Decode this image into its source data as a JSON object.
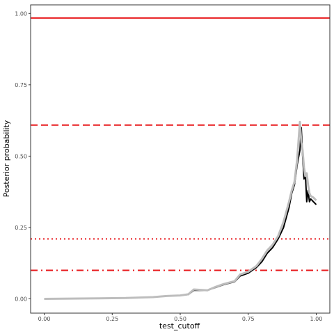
{
  "chart_data": {
    "type": "line",
    "title": "",
    "xlabel": "test_cutoff",
    "ylabel": "Posterior probability",
    "xlim": [
      -0.05,
      1.05
    ],
    "ylim": [
      -0.05,
      1.03
    ],
    "grid": false,
    "legend": "none",
    "x_ticks": [
      {
        "value": 0.0,
        "label": "0.00"
      },
      {
        "value": 0.25,
        "label": "0.25"
      },
      {
        "value": 0.5,
        "label": "0.50"
      },
      {
        "value": 0.75,
        "label": "0.75"
      },
      {
        "value": 1.0,
        "label": "1.00"
      }
    ],
    "y_ticks": [
      {
        "value": 0.0,
        "label": "0.00"
      },
      {
        "value": 0.25,
        "label": "0.25"
      },
      {
        "value": 0.5,
        "label": "0.50"
      },
      {
        "value": 0.75,
        "label": "0.75"
      },
      {
        "value": 1.0,
        "label": "1.00"
      }
    ],
    "reference_lines": [
      {
        "y": 0.984,
        "style": "solid",
        "color": "#e8191c"
      },
      {
        "y": 0.609,
        "style": "dashed",
        "color": "#e8191c"
      },
      {
        "y": 0.21,
        "style": "dotted",
        "color": "#e8191c"
      },
      {
        "y": 0.1,
        "style": "dashdot",
        "color": "#e8191c"
      }
    ],
    "series": [
      {
        "color": "#000000",
        "points": [
          [
            0.0,
            0.0
          ],
          [
            0.1,
            0.001
          ],
          [
            0.2,
            0.002
          ],
          [
            0.3,
            0.003
          ],
          [
            0.4,
            0.006
          ],
          [
            0.45,
            0.01
          ],
          [
            0.5,
            0.012
          ],
          [
            0.53,
            0.015
          ],
          [
            0.55,
            0.03
          ],
          [
            0.6,
            0.03
          ],
          [
            0.63,
            0.04
          ],
          [
            0.66,
            0.05
          ],
          [
            0.7,
            0.06
          ],
          [
            0.72,
            0.08
          ],
          [
            0.75,
            0.09
          ],
          [
            0.78,
            0.11
          ],
          [
            0.8,
            0.13
          ],
          [
            0.82,
            0.16
          ],
          [
            0.84,
            0.18
          ],
          [
            0.86,
            0.21
          ],
          [
            0.88,
            0.25
          ],
          [
            0.9,
            0.32
          ],
          [
            0.91,
            0.37
          ],
          [
            0.92,
            0.4
          ],
          [
            0.93,
            0.47
          ],
          [
            0.94,
            0.52
          ],
          [
            0.945,
            0.6
          ],
          [
            0.95,
            0.5
          ],
          [
            0.955,
            0.42
          ],
          [
            0.96,
            0.44
          ],
          [
            0.965,
            0.34
          ],
          [
            0.97,
            0.38
          ],
          [
            0.975,
            0.34
          ],
          [
            0.98,
            0.35
          ],
          [
            0.99,
            0.34
          ],
          [
            1.0,
            0.33
          ]
        ]
      },
      {
        "color": "#bdbdbd",
        "points": [
          [
            0.0,
            0.0
          ],
          [
            0.1,
            0.001
          ],
          [
            0.2,
            0.002
          ],
          [
            0.3,
            0.003
          ],
          [
            0.4,
            0.006
          ],
          [
            0.45,
            0.01
          ],
          [
            0.5,
            0.012
          ],
          [
            0.53,
            0.016
          ],
          [
            0.55,
            0.033
          ],
          [
            0.6,
            0.03
          ],
          [
            0.63,
            0.042
          ],
          [
            0.66,
            0.052
          ],
          [
            0.7,
            0.062
          ],
          [
            0.72,
            0.085
          ],
          [
            0.75,
            0.095
          ],
          [
            0.78,
            0.115
          ],
          [
            0.8,
            0.14
          ],
          [
            0.82,
            0.17
          ],
          [
            0.84,
            0.19
          ],
          [
            0.86,
            0.22
          ],
          [
            0.88,
            0.27
          ],
          [
            0.9,
            0.34
          ],
          [
            0.91,
            0.38
          ],
          [
            0.92,
            0.41
          ],
          [
            0.93,
            0.49
          ],
          [
            0.94,
            0.62
          ],
          [
            0.945,
            0.55
          ],
          [
            0.95,
            0.52
          ],
          [
            0.955,
            0.46
          ],
          [
            0.96,
            0.43
          ],
          [
            0.965,
            0.44
          ],
          [
            0.97,
            0.4
          ],
          [
            0.975,
            0.37
          ],
          [
            0.98,
            0.36
          ],
          [
            0.99,
            0.355
          ],
          [
            1.0,
            0.345
          ]
        ]
      }
    ]
  }
}
